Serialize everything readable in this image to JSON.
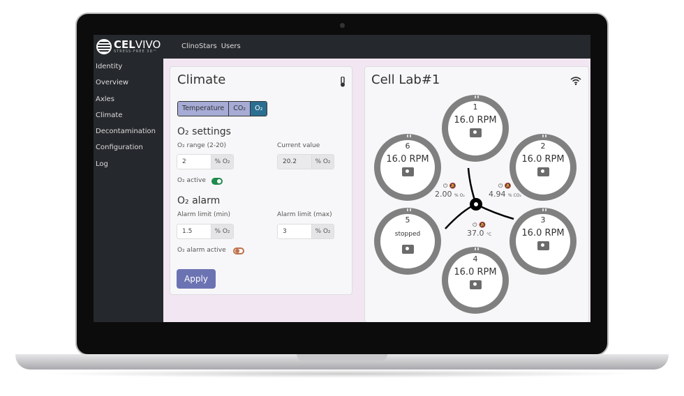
{
  "brand": {
    "name_bold": "CEL",
    "name_light": "VIVO",
    "tagline": "STRESS-FREE 3D™"
  },
  "nav": [
    "ClinoStars",
    "Users"
  ],
  "sidebar": [
    "Identity",
    "Overview",
    "Axles",
    "Climate",
    "Decontamination",
    "Configuration",
    "Log"
  ],
  "climate": {
    "title": "Climate",
    "icon": "thermometer-icon",
    "tabs": [
      {
        "label": "Temperature",
        "active": false
      },
      {
        "label": "CO₂",
        "active": false
      },
      {
        "label": "O₂",
        "active": true
      }
    ],
    "settings_title": "O₂ settings",
    "range_label": "O₂ range (2-20)",
    "range_value": "2",
    "unit": "% O₂",
    "current_label": "Current value",
    "current_value": "20.2",
    "active_label": "O₂ active",
    "active_on": true,
    "alarm_title": "O₂ alarm",
    "alarm_min_label": "Alarm limit (min)",
    "alarm_min": "1.5",
    "alarm_max_label": "Alarm limit (max)",
    "alarm_max": "3",
    "alarm_active_label": "O₂ alarm active",
    "alarm_active_on": false,
    "apply_label": "Apply"
  },
  "lab": {
    "title": "Cell Lab#1",
    "icon": "wifi-icon",
    "stations": [
      {
        "n": "1",
        "status": "16.0 RPM"
      },
      {
        "n": "2",
        "status": "16.0 RPM"
      },
      {
        "n": "3",
        "status": "16.0 RPM"
      },
      {
        "n": "4",
        "status": "16.0 RPM"
      },
      {
        "n": "5",
        "status": "stopped"
      },
      {
        "n": "6",
        "status": "16.0 RPM"
      }
    ],
    "readings": [
      {
        "value": "2.00",
        "unit": "% O₂"
      },
      {
        "value": "4.94",
        "unit": "% CO₂"
      },
      {
        "value": "37.0",
        "unit": "°C"
      }
    ]
  },
  "colors": {
    "tab_active": "#2a6f92",
    "toggle_on": "#1e8a4c",
    "toggle_off": "#c0704a",
    "apply": "#6c73b3"
  }
}
